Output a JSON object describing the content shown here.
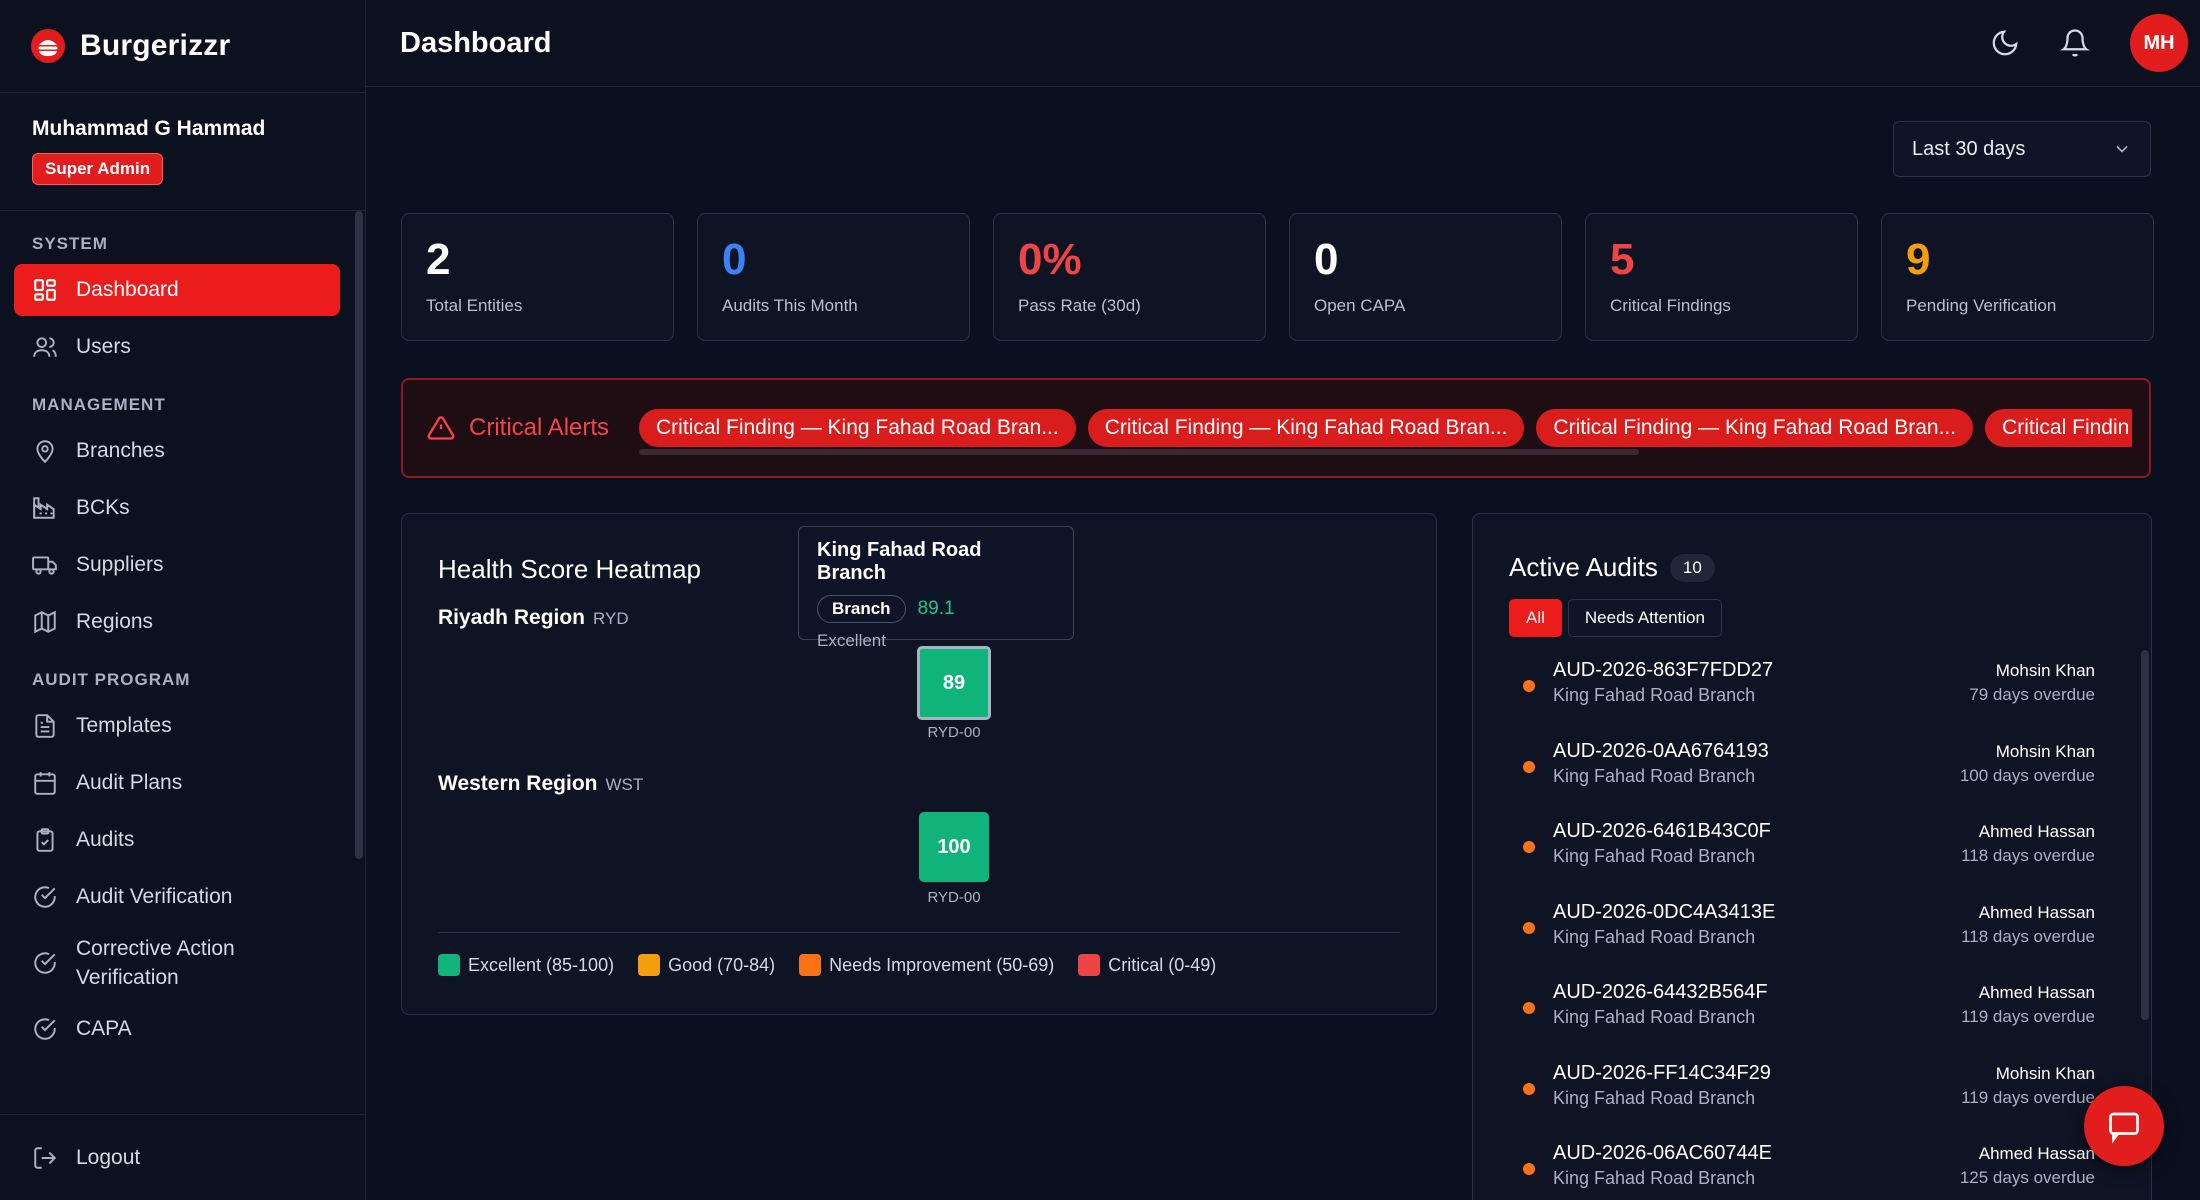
{
  "brand": {
    "name": "Burgerizzr"
  },
  "user": {
    "name": "Muhammad G Hammad",
    "role": "Super Admin",
    "initials": "MH"
  },
  "topbar": {
    "title": "Dashboard"
  },
  "sidebar": {
    "sections": [
      {
        "title": "SYSTEM",
        "items": [
          {
            "label": "Dashboard",
            "icon": "dashboard-icon",
            "active": true
          },
          {
            "label": "Users",
            "icon": "users-icon"
          }
        ]
      },
      {
        "title": "MANAGEMENT",
        "items": [
          {
            "label": "Branches",
            "icon": "map-pin-icon"
          },
          {
            "label": "BCKs",
            "icon": "factory-icon"
          },
          {
            "label": "Suppliers",
            "icon": "truck-icon"
          },
          {
            "label": "Regions",
            "icon": "map-icon"
          }
        ]
      },
      {
        "title": "AUDIT PROGRAM",
        "items": [
          {
            "label": "Templates",
            "icon": "file-text-icon"
          },
          {
            "label": "Audit Plans",
            "icon": "calendar-icon"
          },
          {
            "label": "Audits",
            "icon": "clipboard-check-icon"
          },
          {
            "label": "Audit Verification",
            "icon": "check-circle-icon"
          },
          {
            "label": "Corrective Action Verification",
            "icon": "check-circle-icon"
          },
          {
            "label": "CAPA",
            "icon": "check-circle-icon"
          }
        ]
      }
    ],
    "logout": "Logout"
  },
  "filters": {
    "range": "Last 30 days"
  },
  "stats": [
    {
      "value": "2",
      "label": "Total Entities",
      "color": "#ffffff"
    },
    {
      "value": "0",
      "label": "Audits This Month",
      "color": "#3b82f6"
    },
    {
      "value": "0%",
      "label": "Pass Rate (30d)",
      "color": "#ef4444"
    },
    {
      "value": "0",
      "label": "Open CAPA",
      "color": "#ffffff"
    },
    {
      "value": "5",
      "label": "Critical Findings",
      "color": "#ef4444"
    },
    {
      "value": "9",
      "label": "Pending Verification",
      "color": "#f59e0b"
    }
  ],
  "alerts": {
    "title": "Critical Alerts",
    "items": [
      "Critical Finding — King Fahad Road Bran...",
      "Critical Finding — King Fahad Road Bran...",
      "Critical Finding — King Fahad Road Bran...",
      "Critical Findin"
    ]
  },
  "heatmap": {
    "title": "Health Score Heatmap",
    "regions": [
      {
        "name": "Riyadh Region",
        "code": "RYD",
        "cells": [
          {
            "score": "89",
            "code": "RYD-00"
          }
        ]
      },
      {
        "name": "Western Region",
        "code": "WST",
        "cells": [
          {
            "score": "100",
            "code": "RYD-00"
          }
        ]
      }
    ],
    "tooltip": {
      "name": "King Fahad Road Branch",
      "type": "Branch",
      "score": "89.1",
      "grade": "Excellent"
    },
    "legend": [
      {
        "label": "Excellent (85-100)",
        "color": "#10b47a"
      },
      {
        "label": "Good (70-84)",
        "color": "#f59e0b"
      },
      {
        "label": "Needs Improvement (50-69)",
        "color": "#f97316"
      },
      {
        "label": "Critical (0-49)",
        "color": "#ef4444"
      }
    ]
  },
  "audits": {
    "title": "Active Audits",
    "count": "10",
    "filters": [
      "All",
      "Needs Attention"
    ],
    "items": [
      {
        "id": "AUD-2026-863F7FDD27",
        "branch": "King Fahad Road Branch",
        "auditor": "Mohsin Khan",
        "overdue": "79 days overdue"
      },
      {
        "id": "AUD-2026-0AA6764193",
        "branch": "King Fahad Road Branch",
        "auditor": "Mohsin Khan",
        "overdue": "100 days overdue"
      },
      {
        "id": "AUD-2026-6461B43C0F",
        "branch": "King Fahad Road Branch",
        "auditor": "Ahmed Hassan",
        "overdue": "118 days overdue"
      },
      {
        "id": "AUD-2026-0DC4A3413E",
        "branch": "King Fahad Road Branch",
        "auditor": "Ahmed Hassan",
        "overdue": "118 days overdue"
      },
      {
        "id": "AUD-2026-64432B564F",
        "branch": "King Fahad Road Branch",
        "auditor": "Ahmed Hassan",
        "overdue": "119 days overdue"
      },
      {
        "id": "AUD-2026-FF14C34F29",
        "branch": "King Fahad Road Branch",
        "auditor": "Mohsin Khan",
        "overdue": "119 days overdue"
      },
      {
        "id": "AUD-2026-06AC60744E",
        "branch": "King Fahad Road Branch",
        "auditor": "Ahmed Hassan",
        "overdue": "125 days overdue"
      }
    ]
  }
}
